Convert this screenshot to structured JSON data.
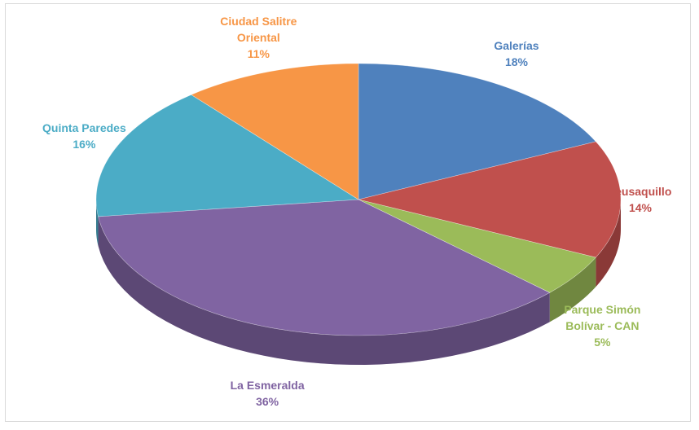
{
  "chart_data": {
    "type": "pie",
    "categories": [
      "Galerías",
      "Teusaquillo",
      "Parque Simón Bolívar - CAN",
      "La Esmeralda",
      "Quinta Paredes",
      "Ciudad Salitre Oriental"
    ],
    "values": [
      18,
      14,
      5,
      36,
      16,
      11
    ],
    "value_labels": [
      "18%",
      "14%",
      "5%",
      "36%",
      "16%",
      "11%"
    ],
    "colors": [
      "#4f81bd",
      "#c0504d",
      "#9bbb59",
      "#8064a2",
      "#4bacc6",
      "#f79646"
    ]
  }
}
